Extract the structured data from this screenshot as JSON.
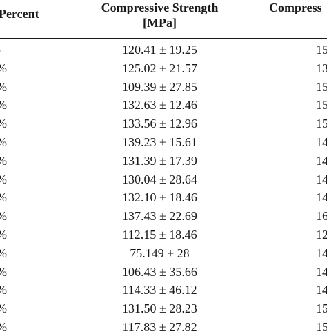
{
  "header": {
    "percent": "Percent",
    "compressive_strength_line1": "Compressive Strength",
    "compressive_strength_line2": "[MPa]",
    "compress_partial": "Compress"
  },
  "rows": [
    {
      "percent": "-",
      "strength": "120.41 ± 19.25",
      "partial": "15"
    },
    {
      "percent": "%",
      "strength": "125.02 ± 21.57",
      "partial": "13"
    },
    {
      "percent": "%",
      "strength": "109.39 ± 27.85",
      "partial": "15"
    },
    {
      "percent": "%",
      "strength": "132.63 ± 12.46",
      "partial": "15"
    },
    {
      "percent": "%",
      "strength": "133.56 ± 12.96",
      "partial": "15"
    },
    {
      "percent": "%",
      "strength": "139.23 ± 15.61",
      "partial": "14"
    },
    {
      "percent": "%",
      "strength": "131.39 ± 17.39",
      "partial": "14"
    },
    {
      "percent": "%",
      "strength": "130.04 ± 28.64",
      "partial": "14"
    },
    {
      "percent": "%",
      "strength": "132.10 ± 18.46",
      "partial": "14"
    },
    {
      "percent": "%",
      "strength": "137.43 ± 22.69",
      "partial": "16"
    },
    {
      "percent": "%",
      "strength": "112.15 ± 18.46",
      "partial": "12"
    },
    {
      "percent": "%",
      "strength": "75.149 ± 28",
      "partial": "14"
    },
    {
      "percent": "%",
      "strength": "106.43 ± 35.66",
      "partial": "14"
    },
    {
      "percent": "%",
      "strength": "114.33 ± 46.12",
      "partial": "14"
    },
    {
      "percent": "%",
      "strength": "131.50 ± 28.23",
      "partial": "15"
    },
    {
      "percent": "%",
      "strength": "117.83 ± 27.82",
      "partial": "15"
    }
  ]
}
